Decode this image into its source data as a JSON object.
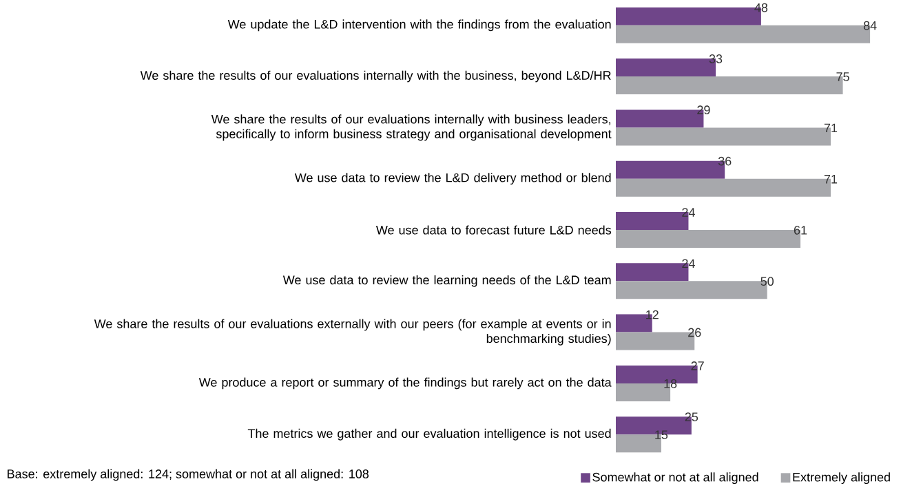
{
  "chart_data": {
    "type": "bar",
    "orientation": "horizontal",
    "data_labels": true,
    "legend": "bottom right",
    "categories": [
      "We update the L&D intervention with the findings from the evaluation",
      "We share the results of our evaluations internally with the business, beyond L&D/HR",
      "We share the results of our evaluations internally with business leaders, specifically to inform business strategy and organisational development",
      "We use data to review the L&D delivery method or blend",
      "We use data to forecast future L&D needs",
      "We use data to review the learning needs of the L&D team",
      "We share the results of our evaluations externally with our peers (for example at events or in benchmarking studies)",
      "We produce a report or summary of the findings but rarely act on the data",
      "The metrics we gather and our evaluation intelligence is not used"
    ],
    "series": [
      {
        "name": "Somewhat or not at all aligned",
        "color": "#6f4589",
        "values": [
          48,
          33,
          29,
          36,
          24,
          24,
          12,
          27,
          25
        ]
      },
      {
        "name": "Extremely aligned",
        "color": "#a7a8ac",
        "values": [
          84,
          75,
          71,
          71,
          61,
          50,
          26,
          18,
          15
        ]
      }
    ],
    "annotations": [
      "Base: extremely aligned: 124; somewhat or not at all aligned: 108"
    ]
  }
}
